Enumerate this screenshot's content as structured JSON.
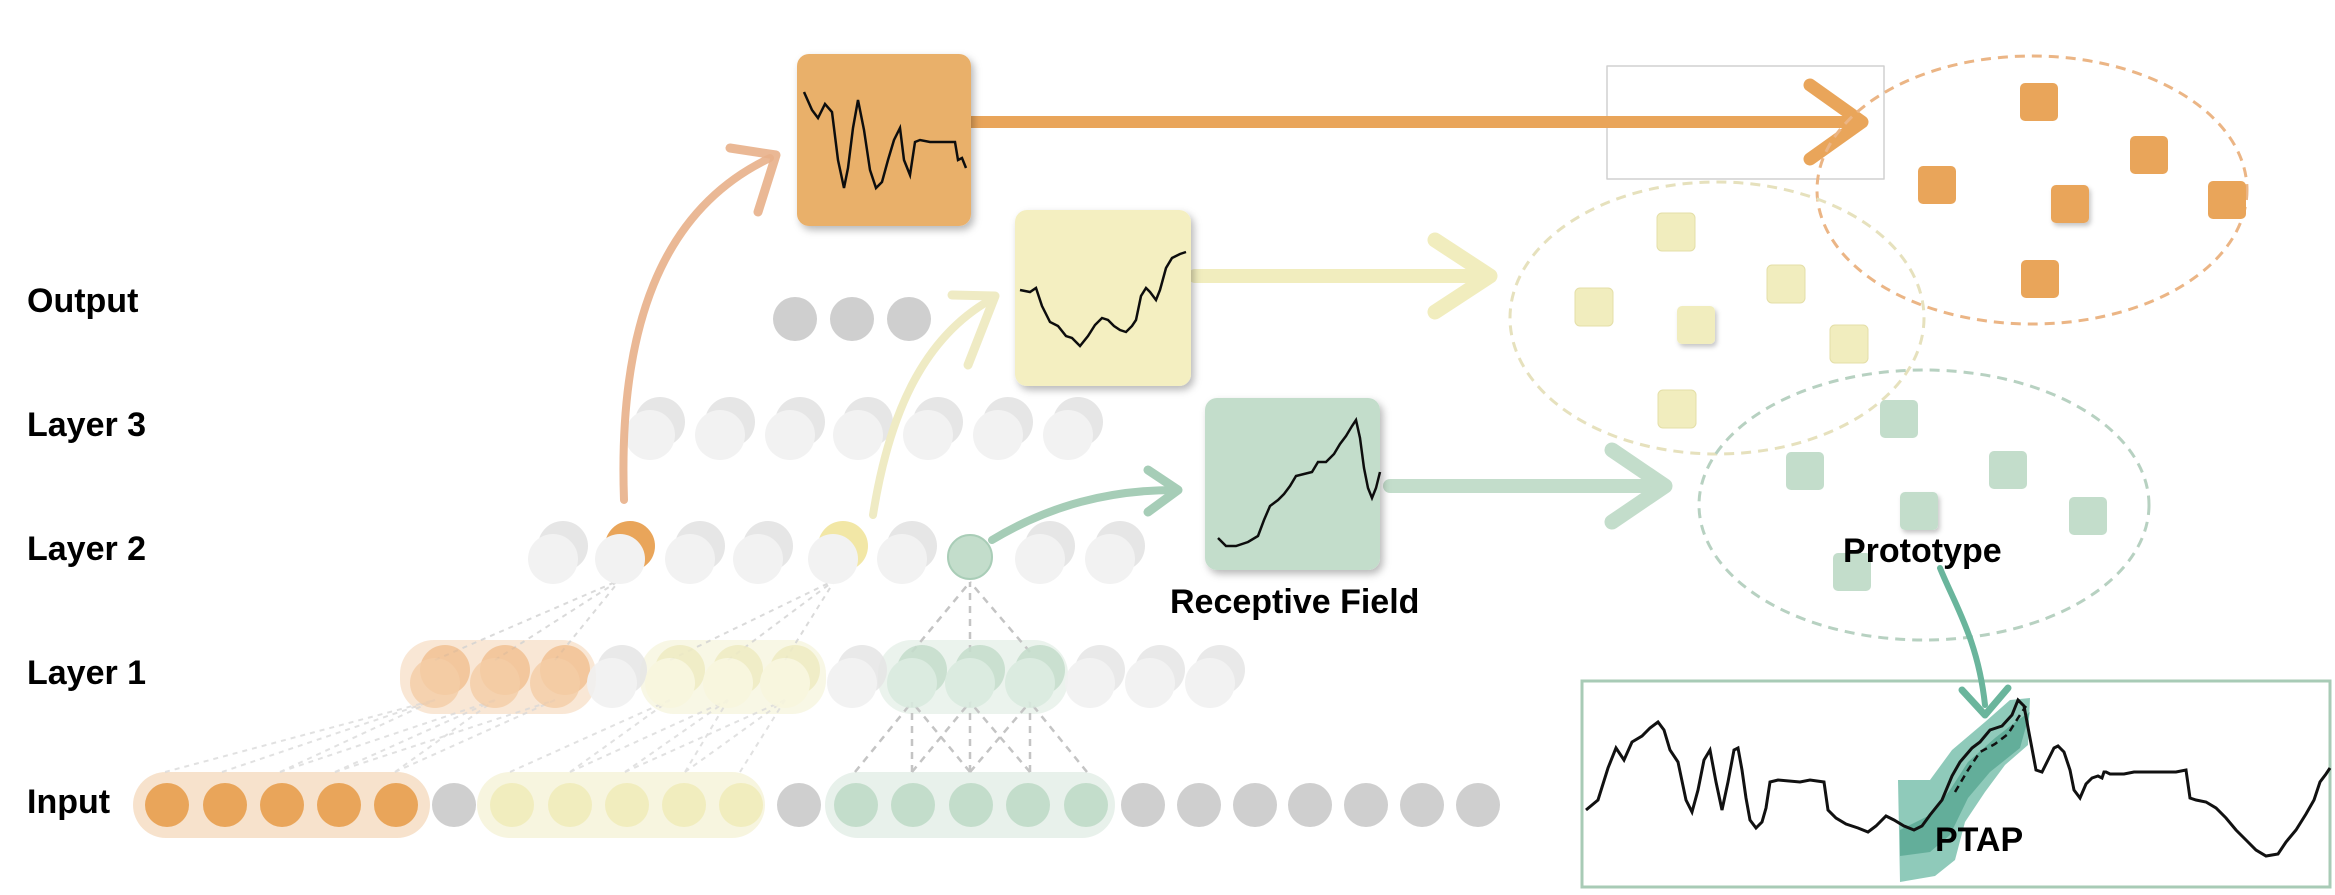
{
  "layers": {
    "output": "Output",
    "layer3": "Layer 3",
    "layer2": "Layer 2",
    "layer1": "Layer 1",
    "input": "Input"
  },
  "annotations": {
    "receptive_field": "Receptive Field",
    "prototype": "Prototype",
    "ptap": "PTAP"
  },
  "colors": {
    "orange": "#E9A55A",
    "orange_light": "#F6DDC3",
    "yellow": "#F1EDBE",
    "yellow_dark": "#E9E3A6",
    "green": "#C3DDCB",
    "green_dark": "#A9CDB7",
    "gray_node": "#CFCFCF",
    "ghost_node": "#EDEDED",
    "border_green": "#A8CBB6",
    "band_green": "#5FB49C"
  }
}
